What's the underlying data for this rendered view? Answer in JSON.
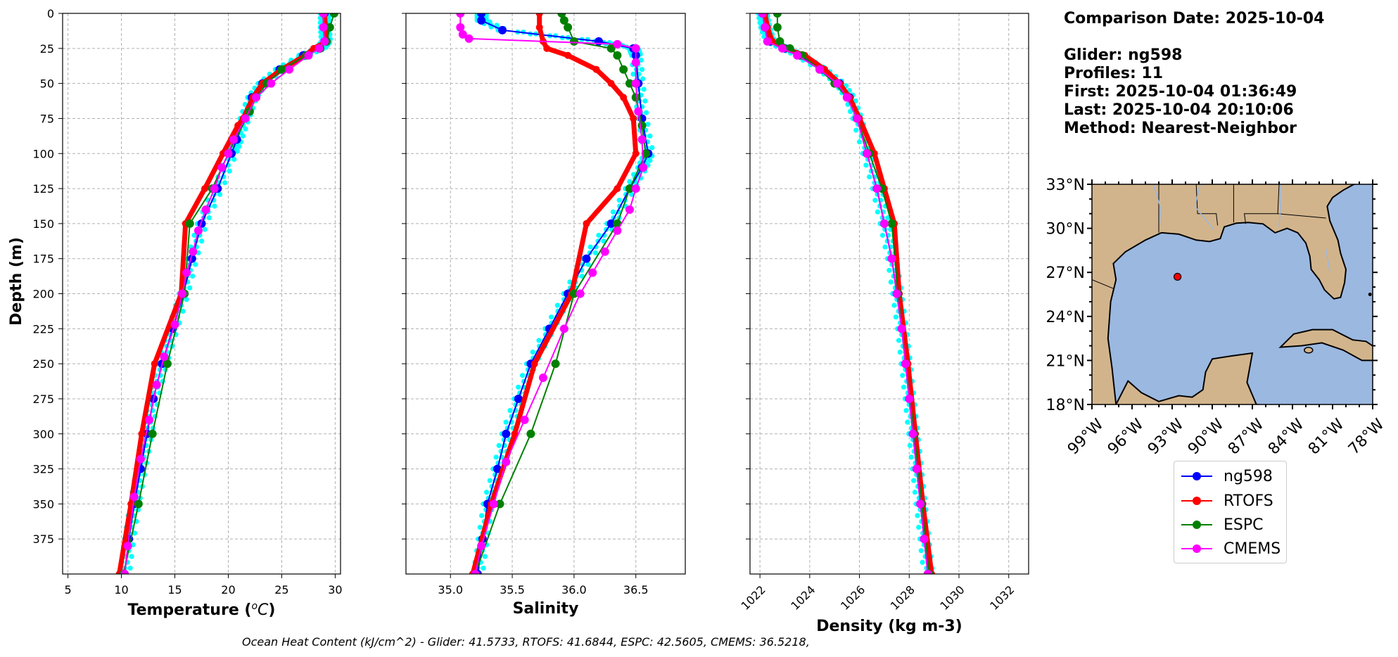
{
  "info": {
    "comparison_date": "Comparison Date: 2025-10-04",
    "glider": "Glider: ng598",
    "profiles": "Profiles: 11",
    "first": "First: 2025-10-04 01:36:49",
    "last": "Last: 2025-10-04 20:10:06",
    "method": "Method: Nearest-Neighbor"
  },
  "ohc_text": "Ocean Heat Content (kJ/cm^2) - Glider: 41.5733,  RTOFS: 41.6844,  ESPC: 42.5605,  CMEMS: 36.5218,",
  "legend": [
    {
      "label": "ng598",
      "color": "#0000ff"
    },
    {
      "label": "RTOFS",
      "color": "#ff0000"
    },
    {
      "label": "ESPC",
      "color": "#008000"
    },
    {
      "label": "CMEMS",
      "color": "#ff00ff"
    }
  ],
  "colors": {
    "glider": "#0000ff",
    "glider_raw": "#00ffff",
    "rtofs": "#ff0000",
    "espc": "#008000",
    "cmems": "#ff00ff",
    "land": "#d2b48c",
    "ocean": "#9bb8e0"
  },
  "chart_data": [
    {
      "type": "line",
      "xlabel": "Temperature (°C)",
      "ylabel": "Depth (m)",
      "xlim": [
        4.5,
        30.5
      ],
      "ylim": [
        400,
        0
      ],
      "xticks": [
        5,
        10,
        15,
        20,
        25,
        30
      ],
      "yticks": [
        0,
        25,
        50,
        75,
        100,
        125,
        150,
        175,
        200,
        225,
        250,
        275,
        300,
        325,
        350,
        375
      ],
      "grid": true,
      "series": [
        {
          "name": "ng598",
          "depth": [
            0,
            10,
            20,
            25,
            30,
            40,
            50,
            60,
            75,
            90,
            100,
            125,
            150,
            175,
            200,
            225,
            250,
            275,
            300,
            325,
            350,
            375,
            400
          ],
          "values": [
            29.0,
            29.0,
            29.1,
            28.6,
            27.0,
            24.8,
            23.2,
            22.2,
            21.5,
            20.8,
            20.3,
            19.0,
            17.5,
            16.6,
            15.8,
            14.8,
            13.8,
            13.0,
            12.4,
            11.8,
            11.2,
            10.7,
            10.3
          ]
        },
        {
          "name": "RTOFS",
          "depth": [
            0,
            10,
            20,
            25,
            30,
            40,
            50,
            60,
            75,
            80,
            100,
            125,
            150,
            200,
            250,
            300,
            350,
            400
          ],
          "values": [
            29.0,
            29.1,
            29.2,
            28.0,
            27.2,
            25.0,
            23.2,
            22.3,
            21.4,
            20.9,
            19.5,
            17.8,
            16.0,
            15.6,
            13.1,
            11.9,
            10.9,
            9.8
          ]
        },
        {
          "name": "ESPC",
          "depth": [
            0,
            10,
            20,
            25,
            30,
            40,
            50,
            60,
            70,
            100,
            125,
            150,
            200,
            250,
            300,
            350,
            400
          ],
          "values": [
            29.9,
            29.5,
            29.2,
            28.6,
            27.3,
            25.0,
            23.6,
            22.6,
            22.0,
            20.0,
            18.5,
            16.4,
            15.9,
            14.3,
            12.9,
            11.6,
            10.2
          ]
        },
        {
          "name": "CMEMS",
          "depth": [
            0,
            10,
            20,
            25,
            30,
            40,
            50,
            60,
            75,
            90,
            100,
            110,
            125,
            140,
            155,
            170,
            185,
            200,
            222,
            245,
            265,
            290,
            318,
            345,
            380,
            400
          ],
          "values": [
            28.9,
            28.9,
            29.0,
            28.5,
            27.5,
            25.7,
            24.0,
            22.6,
            21.6,
            20.5,
            20.0,
            19.4,
            18.7,
            17.9,
            17.2,
            16.7,
            16.1,
            15.7,
            15.0,
            14.0,
            13.3,
            12.6,
            11.8,
            11.2,
            10.6,
            10.3
          ]
        }
      ]
    },
    {
      "type": "line",
      "xlabel": "Salinity",
      "xlim": [
        34.64,
        36.9
      ],
      "ylim": [
        400,
        0
      ],
      "xticks": [
        35.0,
        35.5,
        36.0,
        36.5
      ],
      "grid": true,
      "series": [
        {
          "name": "ng598",
          "depth": [
            0,
            5,
            12,
            20,
            25,
            30,
            50,
            75,
            100,
            110,
            125,
            150,
            175,
            200,
            225,
            250,
            275,
            300,
            325,
            350,
            375,
            400
          ],
          "values": [
            35.25,
            35.25,
            35.42,
            36.2,
            36.48,
            36.5,
            36.52,
            36.55,
            36.6,
            36.55,
            36.45,
            36.3,
            36.1,
            35.95,
            35.8,
            35.65,
            35.55,
            35.45,
            35.38,
            35.3,
            35.26,
            35.22
          ]
        },
        {
          "name": "RTOFS",
          "depth": [
            0,
            10,
            20,
            25,
            30,
            40,
            50,
            60,
            75,
            100,
            125,
            150,
            200,
            250,
            300,
            350,
            400
          ],
          "values": [
            35.72,
            35.72,
            35.75,
            35.78,
            35.95,
            36.18,
            36.3,
            36.4,
            36.48,
            36.5,
            36.35,
            36.1,
            35.98,
            35.68,
            35.52,
            35.33,
            35.18
          ]
        },
        {
          "name": "ESPC",
          "depth": [
            0,
            5,
            10,
            20,
            25,
            30,
            40,
            50,
            60,
            80,
            100,
            125,
            150,
            200,
            250,
            300,
            350,
            400
          ],
          "values": [
            35.9,
            35.92,
            35.95,
            36.0,
            36.3,
            36.35,
            36.4,
            36.45,
            36.5,
            36.55,
            36.58,
            36.45,
            36.35,
            36.0,
            35.85,
            35.65,
            35.4,
            35.2
          ]
        },
        {
          "name": "CMEMS",
          "depth": [
            0,
            10,
            15,
            18,
            22,
            25,
            35,
            50,
            70,
            90,
            110,
            125,
            140,
            155,
            170,
            185,
            200,
            225,
            260,
            290,
            320,
            350,
            380,
            400
          ],
          "values": [
            35.08,
            35.08,
            35.1,
            35.15,
            36.35,
            36.5,
            36.5,
            36.5,
            36.52,
            36.55,
            36.56,
            36.5,
            36.45,
            36.35,
            36.25,
            36.15,
            36.05,
            35.92,
            35.75,
            35.6,
            35.45,
            35.35,
            35.25,
            35.2
          ]
        }
      ]
    },
    {
      "type": "line",
      "xlabel": "Density (kg m-3)",
      "xlim": [
        1021.6,
        1032.8
      ],
      "ylim": [
        400,
        0
      ],
      "xticks": [
        1022,
        1024,
        1026,
        1028,
        1030,
        1032
      ],
      "grid": true,
      "series": [
        {
          "name": "ng598",
          "depth": [
            0,
            10,
            20,
            25,
            30,
            40,
            50,
            60,
            75,
            100,
            125,
            150,
            175,
            200,
            225,
            250,
            275,
            300,
            325,
            350,
            375,
            400
          ],
          "values": [
            1022.1,
            1022.2,
            1022.4,
            1023.0,
            1023.6,
            1024.5,
            1025.2,
            1025.6,
            1025.9,
            1026.3,
            1026.7,
            1027.0,
            1027.3,
            1027.5,
            1027.7,
            1027.85,
            1028.0,
            1028.15,
            1028.3,
            1028.45,
            1028.6,
            1028.75
          ]
        },
        {
          "name": "RTOFS",
          "depth": [
            0,
            10,
            20,
            25,
            30,
            40,
            50,
            60,
            75,
            100,
            125,
            150,
            200,
            250,
            300,
            350,
            400
          ],
          "values": [
            1022.2,
            1022.3,
            1022.5,
            1023.0,
            1023.8,
            1024.6,
            1025.2,
            1025.6,
            1026.0,
            1026.6,
            1027.0,
            1027.4,
            1027.6,
            1027.95,
            1028.25,
            1028.55,
            1028.9
          ]
        },
        {
          "name": "ESPC",
          "depth": [
            0,
            10,
            20,
            25,
            30,
            40,
            50,
            60,
            75,
            100,
            125,
            150,
            200,
            250,
            300,
            350,
            400
          ],
          "values": [
            1022.7,
            1022.7,
            1022.8,
            1023.2,
            1023.7,
            1024.4,
            1025.0,
            1025.5,
            1025.9,
            1026.4,
            1026.9,
            1027.3,
            1027.55,
            1027.85,
            1028.2,
            1028.5,
            1028.8
          ]
        },
        {
          "name": "CMEMS",
          "depth": [
            0,
            10,
            20,
            25,
            30,
            40,
            50,
            60,
            75,
            100,
            125,
            150,
            175,
            200,
            225,
            250,
            275,
            300,
            325,
            350,
            375,
            400
          ],
          "values": [
            1022.1,
            1022.2,
            1022.3,
            1022.9,
            1023.5,
            1024.4,
            1025.1,
            1025.5,
            1025.9,
            1026.3,
            1026.7,
            1027.0,
            1027.3,
            1027.5,
            1027.7,
            1027.85,
            1028.0,
            1028.15,
            1028.3,
            1028.45,
            1028.6,
            1028.75
          ]
        }
      ]
    },
    {
      "type": "map",
      "lon_range": [
        -99,
        -78
      ],
      "lat_range": [
        18,
        33
      ],
      "xticks": [
        "99°W",
        "96°W",
        "93°W",
        "90°W",
        "87°W",
        "84°W",
        "81°W",
        "78°W"
      ],
      "yticks": [
        "18°N",
        "21°N",
        "24°N",
        "27°N",
        "30°N",
        "33°N"
      ],
      "lon_values": [
        -99,
        -96,
        -93,
        -90,
        -87,
        -84,
        -81,
        -78
      ],
      "lat_values": [
        18,
        21,
        24,
        27,
        30,
        33
      ],
      "marker": {
        "lon": -92.6,
        "lat": 26.7,
        "color": "#ff0000"
      }
    }
  ]
}
